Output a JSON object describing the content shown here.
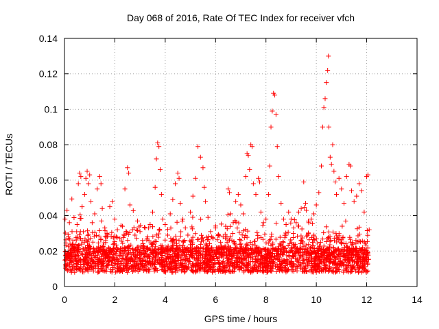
{
  "chart_data": {
    "type": "scatter",
    "title": "Day 068 of 2016, Rate Of TEC Index for receiver vfch",
    "xlabel": "GPS time / hours",
    "ylabel": "ROTI / TECUs",
    "xlim": [
      0,
      14
    ],
    "ylim": [
      0,
      0.14
    ],
    "x_ticks": [
      0,
      2,
      4,
      6,
      8,
      10,
      12,
      14
    ],
    "y_ticks": [
      0,
      0.02,
      0.04,
      0.06,
      0.08,
      0.1,
      0.12,
      0.14
    ],
    "x_tick_labels": [
      "0",
      "2",
      "4",
      "6",
      "8",
      "10",
      "12",
      "14"
    ],
    "y_tick_labels": [
      "0",
      "0.02",
      "0.04",
      "0.06",
      "0.08",
      "0.1",
      "0.12",
      "0.14"
    ],
    "grid": true,
    "marker": "+",
    "color": "#ff0000",
    "series": [
      {
        "name": "ROTI",
        "points": [
          [
            0.05,
            0.012
          ],
          [
            0.1,
            0.043
          ],
          [
            0.15,
            0.028
          ],
          [
            0.2,
            0.018
          ],
          [
            0.3,
            0.031
          ],
          [
            0.4,
            0.022
          ],
          [
            0.5,
            0.035
          ],
          [
            0.55,
            0.058
          ],
          [
            0.6,
            0.064
          ],
          [
            0.65,
            0.062
          ],
          [
            0.7,
            0.045
          ],
          [
            0.8,
            0.052
          ],
          [
            0.85,
            0.061
          ],
          [
            0.9,
            0.065
          ],
          [
            0.95,
            0.058
          ],
          [
            1.0,
            0.063
          ],
          [
            1.05,
            0.048
          ],
          [
            1.1,
            0.036
          ],
          [
            1.2,
            0.041
          ],
          [
            1.3,
            0.055
          ],
          [
            1.4,
            0.062
          ],
          [
            1.45,
            0.058
          ],
          [
            1.5,
            0.044
          ],
          [
            1.6,
            0.033
          ],
          [
            1.7,
            0.028
          ],
          [
            1.8,
            0.045
          ],
          [
            1.9,
            0.048
          ],
          [
            2.0,
            0.038
          ],
          [
            2.1,
            0.032
          ],
          [
            2.2,
            0.027
          ],
          [
            2.3,
            0.034
          ],
          [
            2.4,
            0.055
          ],
          [
            2.5,
            0.067
          ],
          [
            2.55,
            0.064
          ],
          [
            2.6,
            0.046
          ],
          [
            2.7,
            0.032
          ],
          [
            2.8,
            0.029
          ],
          [
            2.9,
            0.037
          ],
          [
            3.0,
            0.031
          ],
          [
            3.1,
            0.026
          ],
          [
            3.2,
            0.033
          ],
          [
            3.3,
            0.028
          ],
          [
            3.4,
            0.035
          ],
          [
            3.5,
            0.042
          ],
          [
            3.6,
            0.056
          ],
          [
            3.65,
            0.072
          ],
          [
            3.7,
            0.081
          ],
          [
            3.75,
            0.079
          ],
          [
            3.8,
            0.066
          ],
          [
            3.85,
            0.052
          ],
          [
            3.9,
            0.038
          ],
          [
            4.0,
            0.035
          ],
          [
            4.1,
            0.029
          ],
          [
            4.2,
            0.041
          ],
          [
            4.3,
            0.049
          ],
          [
            4.4,
            0.058
          ],
          [
            4.5,
            0.064
          ],
          [
            4.55,
            0.061
          ],
          [
            4.6,
            0.047
          ],
          [
            4.7,
            0.038
          ],
          [
            4.8,
            0.033
          ],
          [
            4.9,
            0.029
          ],
          [
            5.0,
            0.042
          ],
          [
            5.1,
            0.051
          ],
          [
            5.2,
            0.061
          ],
          [
            5.3,
            0.079
          ],
          [
            5.4,
            0.073
          ],
          [
            5.5,
            0.067
          ],
          [
            5.55,
            0.056
          ],
          [
            5.6,
            0.048
          ],
          [
            5.7,
            0.039
          ],
          [
            5.8,
            0.031
          ],
          [
            5.9,
            0.027
          ],
          [
            6.0,
            0.033
          ],
          [
            6.1,
            0.029
          ],
          [
            6.2,
            0.025
          ],
          [
            6.3,
            0.028
          ],
          [
            6.4,
            0.034
          ],
          [
            6.5,
            0.055
          ],
          [
            6.55,
            0.053
          ],
          [
            6.6,
            0.041
          ],
          [
            6.7,
            0.036
          ],
          [
            6.8,
            0.048
          ],
          [
            6.9,
            0.052
          ],
          [
            7.0,
            0.046
          ],
          [
            7.1,
            0.041
          ],
          [
            7.2,
            0.062
          ],
          [
            7.25,
            0.075
          ],
          [
            7.3,
            0.074
          ],
          [
            7.35,
            0.066
          ],
          [
            7.4,
            0.08
          ],
          [
            7.45,
            0.079
          ],
          [
            7.5,
            0.058
          ],
          [
            7.6,
            0.052
          ],
          [
            7.7,
            0.061
          ],
          [
            7.75,
            0.059
          ],
          [
            7.8,
            0.042
          ],
          [
            7.9,
            0.036
          ],
          [
            8.0,
            0.038
          ],
          [
            8.1,
            0.052
          ],
          [
            8.15,
            0.068
          ],
          [
            8.2,
            0.09
          ],
          [
            8.25,
            0.099
          ],
          [
            8.3,
            0.109
          ],
          [
            8.35,
            0.108
          ],
          [
            8.4,
            0.097
          ],
          [
            8.45,
            0.079
          ],
          [
            8.5,
            0.062
          ],
          [
            8.6,
            0.047
          ],
          [
            8.7,
            0.038
          ],
          [
            8.8,
            0.035
          ],
          [
            8.9,
            0.042
          ],
          [
            9.0,
            0.038
          ],
          [
            9.1,
            0.033
          ],
          [
            9.2,
            0.036
          ],
          [
            9.3,
            0.042
          ],
          [
            9.4,
            0.044
          ],
          [
            9.5,
            0.059
          ],
          [
            9.6,
            0.043
          ],
          [
            9.7,
            0.036
          ],
          [
            9.8,
            0.038
          ],
          [
            9.9,
            0.041
          ],
          [
            10.0,
            0.046
          ],
          [
            10.1,
            0.053
          ],
          [
            10.2,
            0.068
          ],
          [
            10.25,
            0.09
          ],
          [
            10.3,
            0.101
          ],
          [
            10.35,
            0.106
          ],
          [
            10.4,
            0.115
          ],
          [
            10.45,
            0.122
          ],
          [
            10.48,
            0.13
          ],
          [
            10.5,
            0.09
          ],
          [
            10.55,
            0.073
          ],
          [
            10.6,
            0.069
          ],
          [
            10.65,
            0.08
          ],
          [
            10.7,
            0.065
          ],
          [
            10.75,
            0.059
          ],
          [
            10.8,
            0.052
          ],
          [
            10.9,
            0.061
          ],
          [
            11.0,
            0.055
          ],
          [
            11.1,
            0.047
          ],
          [
            11.2,
            0.062
          ],
          [
            11.3,
            0.069
          ],
          [
            11.35,
            0.068
          ],
          [
            11.4,
            0.054
          ],
          [
            11.5,
            0.048
          ],
          [
            11.6,
            0.051
          ],
          [
            11.7,
            0.058
          ],
          [
            11.8,
            0.054
          ],
          [
            11.9,
            0.042
          ],
          [
            12.0,
            0.062
          ],
          [
            12.05,
            0.063
          ],
          [
            12.1,
            0.032
          ]
        ]
      }
    ]
  }
}
